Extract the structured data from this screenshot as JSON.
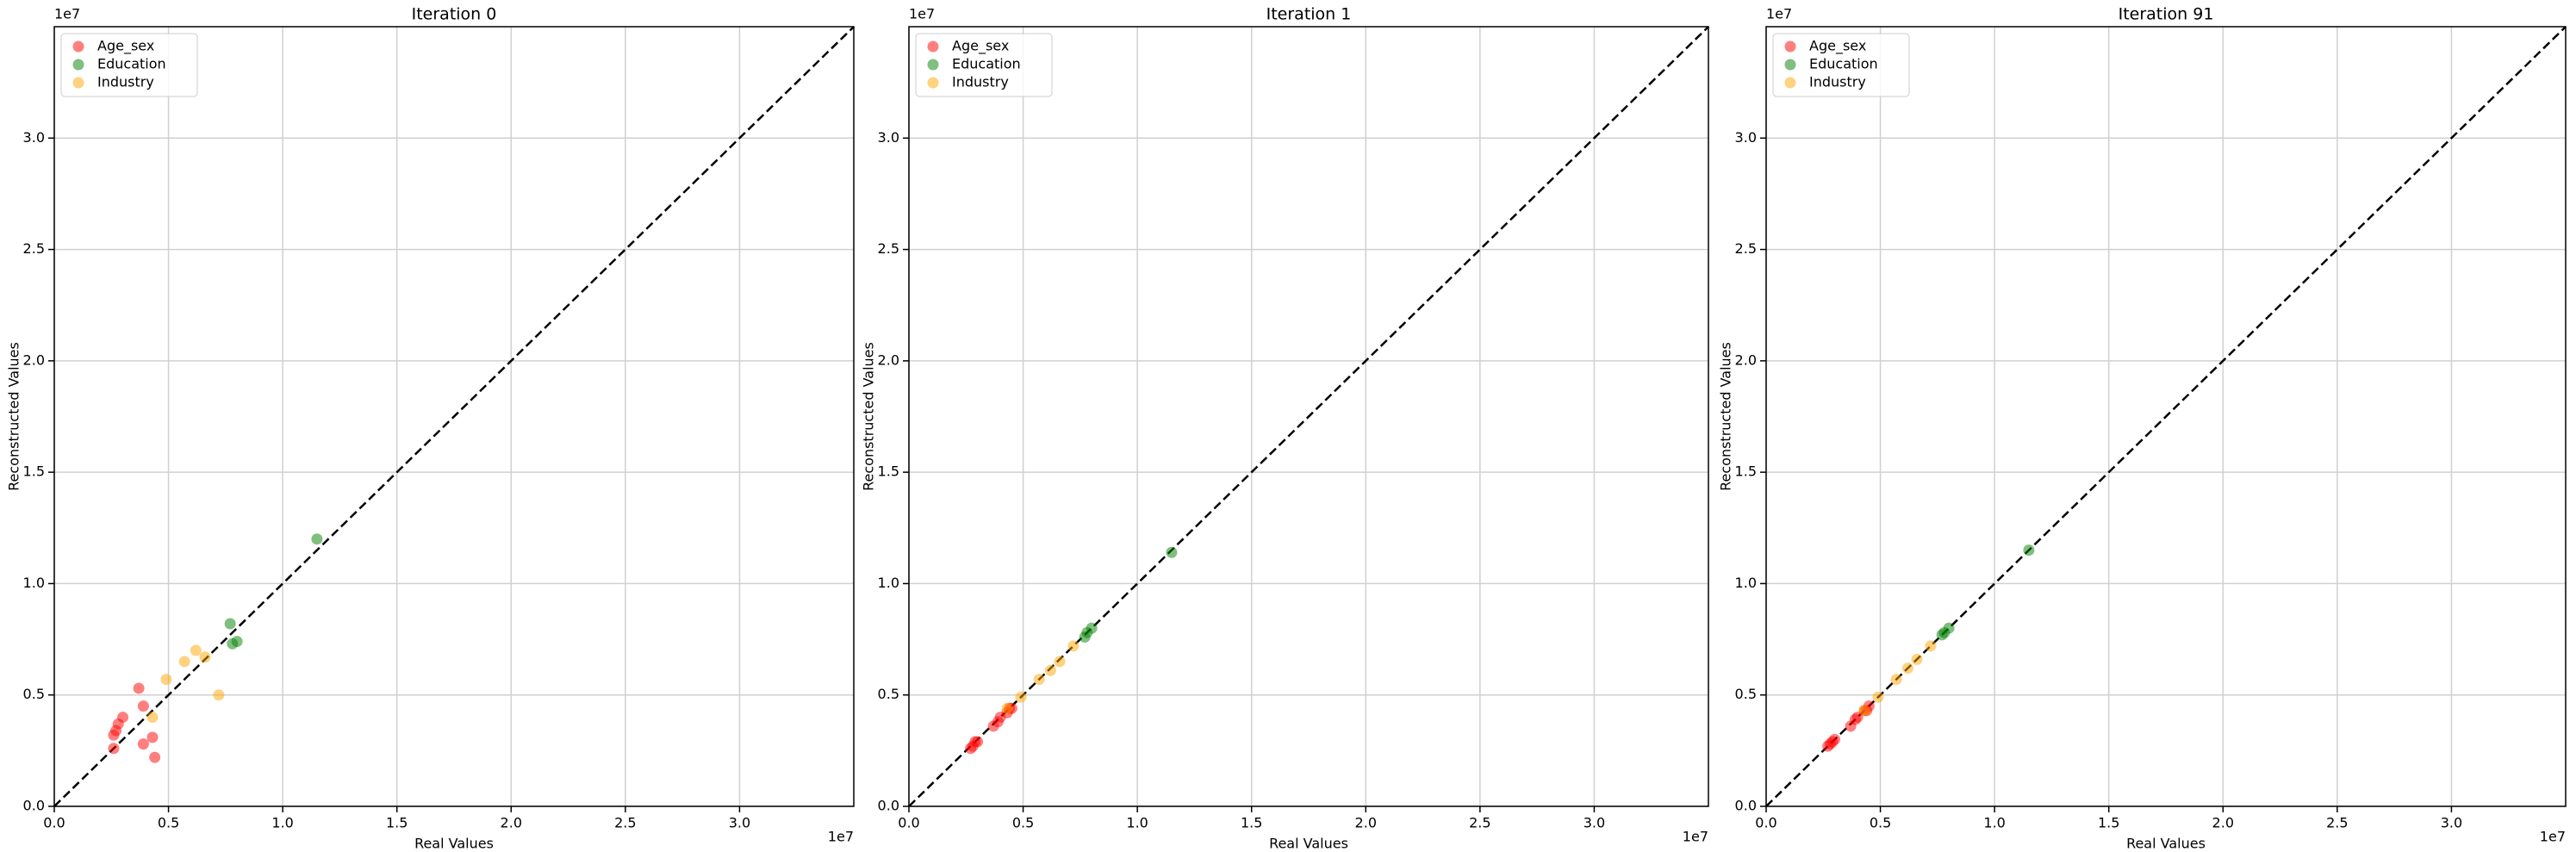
{
  "chart_data": [
    {
      "type": "scatter",
      "title": "Iteration 0",
      "xlabel": "Real Values",
      "ylabel": "Reconstructed Values",
      "x_offset": "1e7",
      "y_offset": "1e7",
      "xlim": [
        0,
        3.5
      ],
      "ylim": [
        0,
        3.5
      ],
      "xticks": [
        {
          "value": 0,
          "label": "0.0"
        },
        0.5,
        {
          "value": 1,
          "label": "1.0"
        },
        1.5,
        {
          "value": 2,
          "label": "2.0"
        },
        2.5,
        {
          "value": 3,
          "label": "3.0"
        }
      ],
      "yticks": [
        {
          "value": 0,
          "label": "0.0"
        },
        0.5,
        {
          "value": 1,
          "label": "1.0"
        },
        1.5,
        {
          "value": 2,
          "label": "2.0"
        },
        2.5,
        {
          "value": 3,
          "label": "3.0"
        }
      ],
      "grid": true,
      "legend": "upper left",
      "series": [
        {
          "name": "Age_sex",
          "color": "#ff0000",
          "x": [
            0.27,
            0.28,
            0.3,
            0.26,
            0.26,
            0.37,
            0.39,
            0.39,
            0.43,
            0.44
          ],
          "values": [
            0.34,
            0.37,
            0.4,
            0.32,
            0.26,
            0.53,
            0.45,
            0.28,
            0.31,
            0.22
          ]
        },
        {
          "name": "Education",
          "color": "#008000",
          "x": [
            0.77,
            0.78,
            0.8,
            1.15
          ],
          "values": [
            0.82,
            0.73,
            0.74,
            1.2
          ]
        },
        {
          "name": "Industry",
          "color": "#ffa500",
          "x": [
            0.43,
            0.49,
            0.57,
            0.62,
            0.66,
            0.72
          ],
          "values": [
            0.4,
            0.57,
            0.65,
            0.7,
            0.67,
            0.5
          ]
        }
      ]
    },
    {
      "type": "scatter",
      "title": "Iteration 1",
      "xlabel": "Real Values",
      "ylabel": "Reconstructed Values",
      "x_offset": "1e7",
      "y_offset": "1e7",
      "xlim": [
        0,
        3.5
      ],
      "ylim": [
        0,
        3.5
      ],
      "xticks": [
        {
          "value": 0,
          "label": "0.0"
        },
        0.5,
        {
          "value": 1,
          "label": "1.0"
        },
        1.5,
        {
          "value": 2,
          "label": "2.0"
        },
        2.5,
        {
          "value": 3,
          "label": "3.0"
        }
      ],
      "yticks": [
        {
          "value": 0,
          "label": "0.0"
        },
        0.5,
        {
          "value": 1,
          "label": "1.0"
        },
        1.5,
        {
          "value": 2,
          "label": "2.0"
        },
        2.5,
        {
          "value": 3,
          "label": "3.0"
        }
      ],
      "grid": true,
      "legend": "upper left",
      "series": [
        {
          "name": "Age_sex",
          "color": "#ff0000",
          "x": [
            0.27,
            0.28,
            0.29,
            0.3,
            0.37,
            0.39,
            0.4,
            0.43,
            0.44,
            0.45
          ],
          "values": [
            0.26,
            0.27,
            0.29,
            0.29,
            0.36,
            0.38,
            0.4,
            0.42,
            0.44,
            0.44
          ]
        },
        {
          "name": "Education",
          "color": "#008000",
          "x": [
            0.77,
            0.78,
            0.8,
            1.15
          ],
          "values": [
            0.76,
            0.78,
            0.8,
            1.14
          ]
        },
        {
          "name": "Industry",
          "color": "#ffa500",
          "x": [
            0.43,
            0.49,
            0.57,
            0.62,
            0.66,
            0.72
          ],
          "values": [
            0.44,
            0.49,
            0.57,
            0.61,
            0.65,
            0.72
          ]
        }
      ]
    },
    {
      "type": "scatter",
      "title": "Iteration 91",
      "xlabel": "Real Values",
      "ylabel": "Reconstructed Values",
      "x_offset": "1e7",
      "y_offset": "1e7",
      "xlim": [
        0,
        3.5
      ],
      "ylim": [
        0,
        3.5
      ],
      "xticks": [
        {
          "value": 0,
          "label": "0.0"
        },
        0.5,
        {
          "value": 1,
          "label": "1.0"
        },
        1.5,
        {
          "value": 2,
          "label": "2.0"
        },
        2.5,
        {
          "value": 3,
          "label": "3.0"
        }
      ],
      "yticks": [
        {
          "value": 0,
          "label": "0.0"
        },
        0.5,
        {
          "value": 1,
          "label": "1.0"
        },
        1.5,
        {
          "value": 2,
          "label": "2.0"
        },
        2.5,
        {
          "value": 3,
          "label": "3.0"
        }
      ],
      "grid": true,
      "legend": "upper left",
      "series": [
        {
          "name": "Age_sex",
          "color": "#ff0000",
          "x": [
            0.27,
            0.28,
            0.29,
            0.3,
            0.37,
            0.39,
            0.4,
            0.43,
            0.44,
            0.45
          ],
          "values": [
            0.27,
            0.28,
            0.29,
            0.3,
            0.36,
            0.39,
            0.4,
            0.43,
            0.43,
            0.45
          ]
        },
        {
          "name": "Education",
          "color": "#008000",
          "x": [
            0.77,
            0.78,
            0.8,
            1.15
          ],
          "values": [
            0.77,
            0.78,
            0.8,
            1.15
          ]
        },
        {
          "name": "Industry",
          "color": "#ffa500",
          "x": [
            0.43,
            0.49,
            0.57,
            0.62,
            0.66,
            0.72
          ],
          "values": [
            0.43,
            0.49,
            0.57,
            0.62,
            0.66,
            0.72
          ]
        }
      ]
    }
  ]
}
